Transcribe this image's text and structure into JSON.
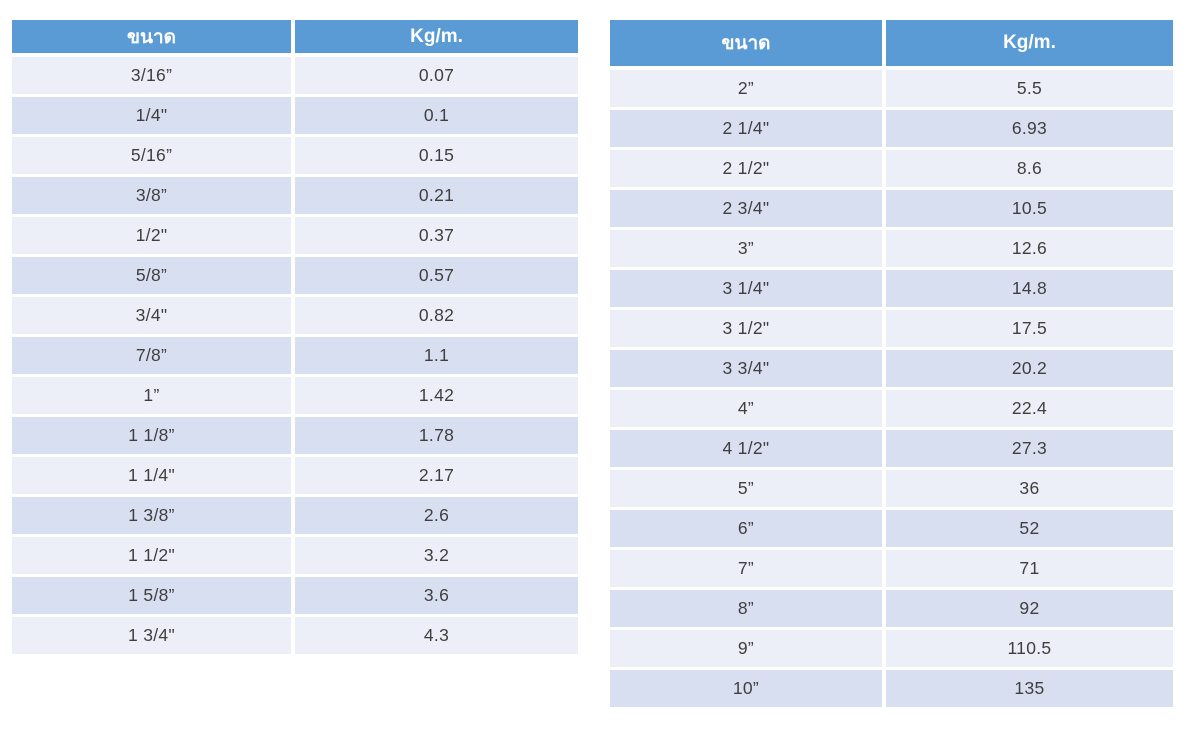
{
  "page": {
    "background": "#ffffff",
    "description_colors": {
      "header_bg": "#5b9bd5",
      "header_text": "#ffffff",
      "row_light": "#eceff7",
      "row_dark": "#d8dff0",
      "cell_text": "#3f3f3f",
      "gap": "#ffffff"
    }
  },
  "tables": [
    {
      "name": "size-weight-table-left",
      "columns": [
        "ขนาด",
        "Kg/m."
      ],
      "rows": [
        [
          "3/16”",
          "0.07"
        ],
        [
          "1/4\"",
          "0.1"
        ],
        [
          "5/16”",
          "0.15"
        ],
        [
          "3/8”",
          "0.21"
        ],
        [
          "1/2\"",
          "0.37"
        ],
        [
          "5/8”",
          "0.57"
        ],
        [
          "3/4\"",
          "0.82"
        ],
        [
          "7/8”",
          "1.1"
        ],
        [
          "1”",
          "1.42"
        ],
        [
          "1 1/8”",
          "1.78"
        ],
        [
          "1 1/4\"",
          "2.17"
        ],
        [
          "1 3/8”",
          "2.6"
        ],
        [
          "1 1/2\"",
          "3.2"
        ],
        [
          "1 5/8”",
          "3.6"
        ],
        [
          "1 3/4\"",
          "4.3"
        ]
      ]
    },
    {
      "name": "size-weight-table-right",
      "columns": [
        "ขนาด",
        "Kg/m."
      ],
      "rows": [
        [
          "2”",
          "5.5"
        ],
        [
          "2 1/4\"",
          "6.93"
        ],
        [
          "2 1/2\"",
          "8.6"
        ],
        [
          "2 3/4\"",
          "10.5"
        ],
        [
          "3”",
          "12.6"
        ],
        [
          "3 1/4\"",
          "14.8"
        ],
        [
          "3 1/2\"",
          "17.5"
        ],
        [
          "3 3/4\"",
          "20.2"
        ],
        [
          "4”",
          "22.4"
        ],
        [
          "4 1/2\"",
          "27.3"
        ],
        [
          "5”",
          "36"
        ],
        [
          "6”",
          "52"
        ],
        [
          "7”",
          "71"
        ],
        [
          "8”",
          "92"
        ],
        [
          "9”",
          "110.5"
        ],
        [
          "10”",
          "135"
        ]
      ]
    }
  ]
}
